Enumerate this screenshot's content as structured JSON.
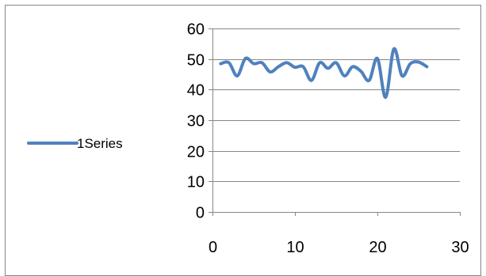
{
  "chart_data": {
    "type": "line",
    "title": "",
    "xlabel": "",
    "ylabel": "",
    "xlim": [
      0,
      30
    ],
    "ylim": [
      0,
      60
    ],
    "x_ticks": [
      "0",
      "10",
      "20",
      "30"
    ],
    "y_ticks": [
      "0",
      "10",
      "20",
      "30",
      "40",
      "50",
      "60"
    ],
    "grid": "horizontal",
    "legend_position": "left",
    "series": [
      {
        "name": "1Series",
        "color": "#4f81bd",
        "x": [
          1,
          2,
          3,
          4,
          5,
          6,
          7,
          8,
          9,
          10,
          11,
          12,
          13,
          14,
          15,
          16,
          17,
          18,
          19,
          20,
          21,
          22,
          23,
          24,
          25,
          26
        ],
        "y": [
          48.5,
          48.8,
          44.5,
          50.2,
          48.5,
          48.8,
          45.8,
          47.5,
          48.8,
          47.3,
          47.5,
          43.0,
          48.8,
          47.0,
          48.8,
          44.5,
          47.5,
          46.0,
          43.0,
          50.2,
          37.5,
          53.3,
          44.5,
          48.5,
          49.0,
          47.5
        ]
      }
    ]
  }
}
